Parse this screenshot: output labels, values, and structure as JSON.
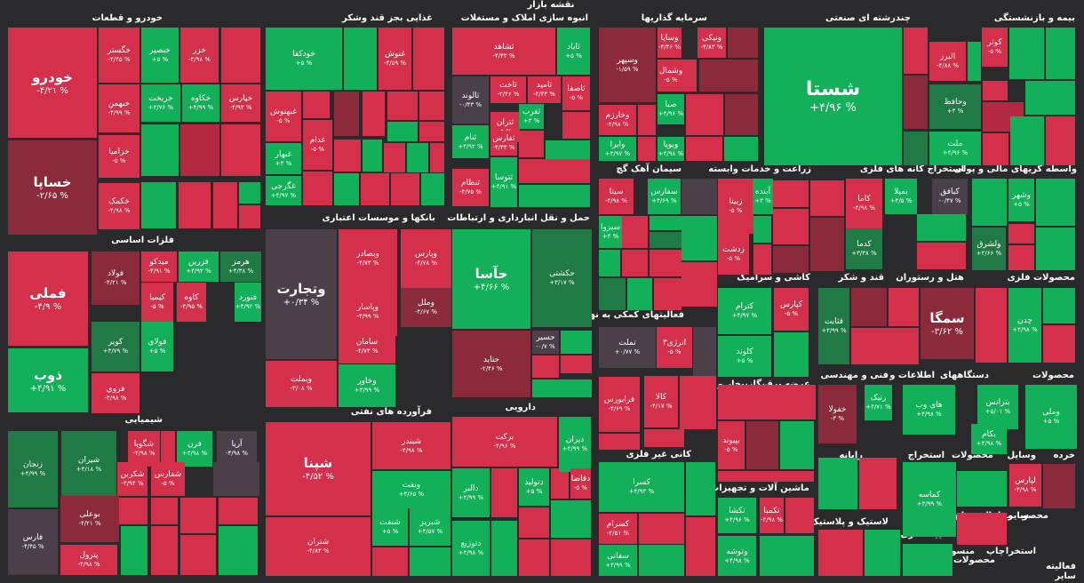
{
  "title": "نقشه بازار",
  "colors": {
    "red": "#d4304c",
    "red_dark": "#8b2a3a",
    "red_mid": "#b52a42",
    "green": "#13b05a",
    "green_dark": "#1f7a45",
    "green_mid": "#17994d",
    "neutral": "#4b4049",
    "bg": "#2a2a2d"
  },
  "sectors": [
    {
      "id": "auto",
      "label": "خودرو و قطعات"
    },
    {
      "id": "food",
      "label": "غذایی بجز قند وشکر"
    },
    {
      "id": "mass",
      "label": "انبوه سازی املاک و مستغلات"
    },
    {
      "id": "invest",
      "label": "سرمایه گذاریها"
    },
    {
      "id": "multi",
      "label": "چندرشته ای صنعتی"
    },
    {
      "id": "insure",
      "label": "بیمه و بازنشستگی"
    },
    {
      "id": "metals",
      "label": "فلزات اساسی"
    },
    {
      "id": "banks",
      "label": "بانکها و موسسات اعتباری"
    },
    {
      "id": "transport",
      "label": "حمل و نقل انبارداری و ارتباطات"
    },
    {
      "id": "cement",
      "label": "سیمان آهک گچ"
    },
    {
      "id": "agri",
      "label": "زراعت و خدمات وابسته"
    },
    {
      "id": "mining",
      "label": "استخراج کانه های فلزی"
    },
    {
      "id": "finint",
      "label": "واسطه گریهای مالی و پولی"
    },
    {
      "id": "tile",
      "label": "کاشی و سرامیک"
    },
    {
      "id": "sugar",
      "label": "قند و شکر"
    },
    {
      "id": "hotel",
      "label": "هتل و رستوران"
    },
    {
      "id": "metalprod",
      "label": "محصولات فلزی"
    },
    {
      "id": "support",
      "label": "فعالیتهای کمکی به نهاد های"
    },
    {
      "id": "chem",
      "label": "شیمیایی"
    },
    {
      "id": "refine",
      "label": "فرآورده های نفتی"
    },
    {
      "id": "pharma",
      "label": "دارویی"
    },
    {
      "id": "power",
      "label": "عرضه برق،گاز،بخار و آب"
    },
    {
      "id": "eng",
      "label": "فنی و مهندسی"
    },
    {
      "id": "it",
      "label": "اطلاعات و"
    },
    {
      "id": "devices",
      "label": "دستگاههای"
    },
    {
      "id": "products",
      "label": "محصولات"
    },
    {
      "id": "nonmetal",
      "label": "کانی غیر فلزی"
    },
    {
      "id": "machinery",
      "label": "ماشین آلات و تجهیزات"
    },
    {
      "id": "computer",
      "label": "رایانه"
    },
    {
      "id": "extract",
      "label": "استخراج"
    },
    {
      "id": "products2",
      "label": "محصولات"
    },
    {
      "id": "tools",
      "label": "وسایل"
    },
    {
      "id": "retail",
      "label": "خرده"
    },
    {
      "id": "rubber",
      "label": "لاستیک و پلاستیک"
    },
    {
      "id": "contractor",
      "label": "پیمانکاری"
    },
    {
      "id": "misc1",
      "label": "استخراج"
    },
    {
      "id": "misc2",
      "label": "مخابرا"
    },
    {
      "id": "misc3",
      "label": "محصو"
    },
    {
      "id": "misc4",
      "label": "سایر"
    },
    {
      "id": "misc5",
      "label": "منسو"
    },
    {
      "id": "misc6",
      "label": "چاپ"
    },
    {
      "id": "misc7",
      "label": "استخرا"
    },
    {
      "id": "misc8",
      "label": "محصولات"
    },
    {
      "id": "misc9",
      "label": "فعالیته"
    },
    {
      "id": "misc10",
      "label": "سایر"
    }
  ],
  "tiles": [
    {
      "name": "خودرو",
      "pct": "-۴/۲۱ %",
      "color": "red"
    },
    {
      "name": "خساپا",
      "pct": "-۲/۶۵ %",
      "color": "red_dark"
    },
    {
      "name": "خگستر",
      "pct": "-۴/۴۵ %",
      "color": "red"
    },
    {
      "name": "خنصیر",
      "pct": "+۵ %",
      "color": "green"
    },
    {
      "name": "خزر",
      "pct": "-۴/۹۸ %",
      "color": "red"
    },
    {
      "name": "خبهمن",
      "pct": "-۴/۹۹ %",
      "color": "red"
    },
    {
      "name": "خریخت",
      "pct": "+۳/۷۶ %",
      "color": "green"
    },
    {
      "name": "خکاوه",
      "pct": "+۴/۹۹ %",
      "color": "green"
    },
    {
      "name": "خپارس",
      "pct": "-۴/۹۳ %",
      "color": "red"
    },
    {
      "name": "خزامیا",
      "pct": "-۵ %",
      "color": "red"
    },
    {
      "name": "خکمک",
      "pct": "-۴/۹۸ %",
      "color": "red"
    },
    {
      "name": "خودکفا",
      "pct": "+۵ %",
      "color": "green"
    },
    {
      "name": "غنوش",
      "pct": "-۴/۵۹ %",
      "color": "red"
    },
    {
      "name": "غبهنوش",
      "pct": "-۵ %",
      "color": "red"
    },
    {
      "name": "غدام",
      "pct": "-۵ %",
      "color": "red"
    },
    {
      "name": "غبهار",
      "pct": "+۳ %",
      "color": "green"
    },
    {
      "name": "غگرجی",
      "pct": "+۴/۹۷ %",
      "color": "green"
    },
    {
      "name": "ثشاهد",
      "pct": "-۴/۴۳ %",
      "color": "red"
    },
    {
      "name": "ثاباد",
      "pct": "+۵ %",
      "color": "green"
    },
    {
      "name": "ثالوند",
      "pct": "-۰/۴۳ %",
      "color": "neutral"
    },
    {
      "name": "ثاخت",
      "pct": "-۲/۴۶ %",
      "color": "red"
    },
    {
      "name": "ثامید",
      "pct": "-۴/۴۳ %",
      "color": "red"
    },
    {
      "name": "ثاصفا",
      "pct": "-۵ %",
      "color": "red"
    },
    {
      "name": "ثتران",
      "pct": "-۵ %",
      "color": "red"
    },
    {
      "name": "ثفارس",
      "pct": "-۴/۴۳ %",
      "color": "red"
    },
    {
      "name": "ثنام",
      "pct": "+۴/۹۲ %",
      "color": "green"
    },
    {
      "name": "ثتوسا",
      "pct": "+۴/۹۱ %",
      "color": "green"
    },
    {
      "name": "ثنظام",
      "pct": "-۴/۷۵ %",
      "color": "red"
    },
    {
      "name": "ثغرب",
      "pct": "+۳ %",
      "color": "green"
    },
    {
      "name": "وسپهر",
      "pct": "-۱/۵۹ %",
      "color": "red_dark"
    },
    {
      "name": "وساپا",
      "pct": "-۴/۴۶ %",
      "color": "red"
    },
    {
      "name": "ونیکی",
      "pct": "-۴/۸۳ %",
      "color": "red"
    },
    {
      "name": "وشمال",
      "pct": "-۵ %",
      "color": "red"
    },
    {
      "name": "وخارزم",
      "pct": "-۲/۹۸ %",
      "color": "red"
    },
    {
      "name": "صبا",
      "pct": "+۴/۹۶ %",
      "color": "green"
    },
    {
      "name": "وایرا",
      "pct": "+۴/۹۷ %",
      "color": "green"
    },
    {
      "name": "ویوپا",
      "pct": "+۴/۹۸ %",
      "color": "green"
    },
    {
      "name": "شستا",
      "pct": "+۴/۹۶ %",
      "color": "green"
    },
    {
      "name": "کوثر",
      "pct": "-۵ %",
      "color": "red"
    },
    {
      "name": "البرز",
      "pct": "-۴/۸۸ %",
      "color": "red"
    },
    {
      "name": "وحافظ",
      "pct": "+۳ %",
      "color": "green_dark"
    },
    {
      "name": "ملت",
      "pct": "+۴/۹۶ %",
      "color": "green"
    },
    {
      "name": "فملی",
      "pct": "-۴/۹ %",
      "color": "red"
    },
    {
      "name": "ذوب",
      "pct": "+۴/۹۱ %",
      "color": "green"
    },
    {
      "name": "فولاد",
      "pct": "-۴/۲۱ %",
      "color": "red_dark"
    },
    {
      "name": "میدکو",
      "pct": "-۴/۹۱ %",
      "color": "red"
    },
    {
      "name": "فزرین",
      "pct": "+۴/۹۲ %",
      "color": "green"
    },
    {
      "name": "هرمز",
      "pct": "+۴/۳۸ %",
      "color": "green_dark"
    },
    {
      "name": "کیمیا",
      "pct": "-۵ %",
      "color": "red"
    },
    {
      "name": "کاوه",
      "pct": "-۴/۹۵ %",
      "color": "red"
    },
    {
      "name": "فنورد",
      "pct": "+۴/۹۲ %",
      "color": "green"
    },
    {
      "name": "کویر",
      "pct": "+۴/۷۹ %",
      "color": "green_dark"
    },
    {
      "name": "فولای",
      "pct": "+۵ %",
      "color": "green"
    },
    {
      "name": "فروی",
      "pct": "-۴/۹۸ %",
      "color": "red"
    },
    {
      "name": "وتجارت",
      "pct": "+۰/۳۴ %",
      "color": "neutral"
    },
    {
      "name": "وبصادر",
      "pct": "-۴/۷۳ %",
      "color": "red"
    },
    {
      "name": "وپارس",
      "pct": "-۴/۷۸ %",
      "color": "red"
    },
    {
      "name": "وپاسار",
      "pct": "-۴/۹۹ %",
      "color": "red"
    },
    {
      "name": "وملل",
      "pct": "-۴/۶۷ %",
      "color": "red_dark"
    },
    {
      "name": "سامان",
      "pct": "-۴/۷۳ %",
      "color": "red"
    },
    {
      "name": "وبملت",
      "pct": "-۳/۰۸ %",
      "color": "red"
    },
    {
      "name": "وخاور",
      "pct": "+۴/۹۹ %",
      "color": "green"
    },
    {
      "name": "حآسا",
      "pct": "+۴/۶۶ %",
      "color": "green"
    },
    {
      "name": "حکشتی",
      "pct": "+۳/۱۷ %",
      "color": "green_dark"
    },
    {
      "name": "حتاید",
      "pct": "-۲/۴۶ %",
      "color": "red_dark"
    },
    {
      "name": "حسیر",
      "pct": "-۰/۷ %",
      "color": "neutral"
    },
    {
      "name": "سیتا",
      "pct": "-۴/۹۸ %",
      "color": "red"
    },
    {
      "name": "سفارس",
      "pct": "+۴/۶۹ %",
      "color": "green"
    },
    {
      "name": "سبزوا",
      "pct": "+۳ %",
      "color": "green"
    },
    {
      "name": "زبینا",
      "pct": "-۵ %",
      "color": "red"
    },
    {
      "name": "آبنده",
      "pct": "+۳ %",
      "color": "green"
    },
    {
      "name": "زدشت",
      "pct": "-۵ %",
      "color": "red"
    },
    {
      "name": "کاما",
      "pct": "-۴/۹۸ %",
      "color": "red"
    },
    {
      "name": "بمیلا",
      "pct": "+۴/۵ %",
      "color": "green"
    },
    {
      "name": "کبافق",
      "pct": "-۰/۴۷ %",
      "color": "neutral"
    },
    {
      "name": "کدما",
      "pct": "+۳/۳۸ %",
      "color": "green_dark"
    },
    {
      "name": "وشهر",
      "pct": "+۵ %",
      "color": "green"
    },
    {
      "name": "ولشرق",
      "pct": "+۲/۶۶ %",
      "color": "green_dark"
    },
    {
      "name": "کترام",
      "pct": "+۴/۹۷ %",
      "color": "green"
    },
    {
      "name": "کپارس",
      "pct": "-۵ %",
      "color": "red"
    },
    {
      "name": "کلوند",
      "pct": "+۵ %",
      "color": "green"
    },
    {
      "name": "قثابت",
      "pct": "+۴/۹۹ %",
      "color": "green_dark"
    },
    {
      "name": "سمگا",
      "pct": "-۳/۶۲ %",
      "color": "red_dark"
    },
    {
      "name": "چدن",
      "pct": "+۴/۹۸ %",
      "color": "green"
    },
    {
      "name": "تملت",
      "pct": "+۰/۷۷ %",
      "color": "neutral"
    },
    {
      "name": "انرژی۳",
      "pct": "-۵ %",
      "color": "red"
    },
    {
      "name": "کالا",
      "pct": "-۴/۱۷ %",
      "color": "red"
    },
    {
      "name": "فرابورس",
      "pct": "-۴/۶۹ %",
      "color": "red"
    },
    {
      "name": "زنجان",
      "pct": "+۴/۹۹ %",
      "color": "green_dark"
    },
    {
      "name": "شیران",
      "pct": "+۴/۱۸ %",
      "color": "green_dark"
    },
    {
      "name": "شگویا",
      "pct": "-۴/۹۸ %",
      "color": "red"
    },
    {
      "name": "فرن",
      "pct": "+۴/۹۸ %",
      "color": "green"
    },
    {
      "name": "آریا",
      "pct": "-۴/۹۸ %",
      "color": "neutral"
    },
    {
      "name": "بوعلی",
      "pct": "-۴/۲۱ %",
      "color": "red_dark"
    },
    {
      "name": "شکربن",
      "pct": "-۴/۹۴ %",
      "color": "red"
    },
    {
      "name": "شفارس",
      "pct": "-۵ %",
      "color": "red"
    },
    {
      "name": "فارس",
      "pct": "-۴/۴۵ %",
      "color": "neutral"
    },
    {
      "name": "پترول",
      "pct": "-۴/۹۸ %",
      "color": "red"
    },
    {
      "name": "شپنا",
      "pct": "-۴/۵۲ %",
      "color": "red"
    },
    {
      "name": "شبندر",
      "pct": "-۴/۹۸ %",
      "color": "red"
    },
    {
      "name": "شتران",
      "pct": "-۴/۸۳ %",
      "color": "red"
    },
    {
      "name": "ونفت",
      "pct": "+۴/۶۵ %",
      "color": "green"
    },
    {
      "name": "شنفت",
      "pct": "+۵ %",
      "color": "green"
    },
    {
      "name": "شبریز",
      "pct": "+۴/۵۷ %",
      "color": "green"
    },
    {
      "name": "برکت",
      "pct": "-۴/۹۶ %",
      "color": "red"
    },
    {
      "name": "دیران",
      "pct": "+۴/۹۹ %",
      "color": "green"
    },
    {
      "name": "دالبر",
      "pct": "+۴/۹۹ %",
      "color": "green"
    },
    {
      "name": "دتولید",
      "pct": "+۵ %",
      "color": "green"
    },
    {
      "name": "دقاضا",
      "pct": "-۵ %",
      "color": "red"
    },
    {
      "name": "دتوزیع",
      "pct": "+۴/۹۸ %",
      "color": "green"
    },
    {
      "name": "کسرا",
      "pct": "+۴/۹۳ %",
      "color": "green"
    },
    {
      "name": "کسرام",
      "pct": "-۲/۵۱ %",
      "color": "red"
    },
    {
      "name": "سفانی",
      "pct": "+۴/۹۹ %",
      "color": "green"
    },
    {
      "name": "بپیوند",
      "pct": "-۵ %",
      "color": "red"
    },
    {
      "name": "تکشا",
      "pct": "+۴/۹۶ %",
      "color": "green"
    },
    {
      "name": "تکمبا",
      "pct": "-۴/۹۸ %",
      "color": "red"
    },
    {
      "name": "وتوشه",
      "pct": "+۴/۹۸ %",
      "color": "green"
    },
    {
      "name": "خفولا",
      "pct": "-۳ %",
      "color": "red_dark"
    },
    {
      "name": "رنیک",
      "pct": "+۴/۷۱ %",
      "color": "green"
    },
    {
      "name": "های وب",
      "pct": "+۴/۹۸ %",
      "color": "green"
    },
    {
      "name": "بترانس",
      "pct": "+۵/۰۱ %",
      "color": "green"
    },
    {
      "name": "بکام",
      "pct": "+۴/۹۸ %",
      "color": "green"
    },
    {
      "name": "وملی",
      "pct": "+۵ %",
      "color": "green"
    },
    {
      "name": "کماسه",
      "pct": "+۴/۹۹ %",
      "color": "green"
    },
    {
      "name": "لپارس",
      "pct": "-۴/۹۸ %",
      "color": "red"
    }
  ]
}
